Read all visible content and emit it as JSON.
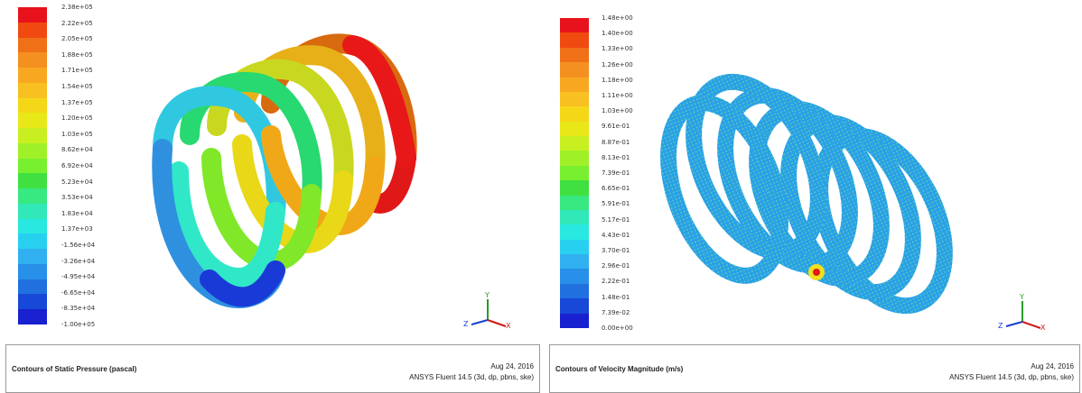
{
  "panels": [
    {
      "id": "static-pressure",
      "legend": {
        "labels": [
          "2.38e+05",
          "2.22e+05",
          "2.05e+05",
          "1.88e+05",
          "1.71e+05",
          "1.54e+05",
          "1.37e+05",
          "1.20e+05",
          "1.03e+05",
          "8.62e+04",
          "6.92e+04",
          "5.23e+04",
          "3.53e+04",
          "1.83e+04",
          "1.37e+03",
          "-1.56e+04",
          "-3.26e+04",
          "-4.95e+04",
          "-6.65e+04",
          "-8.35e+04",
          "-1.00e+05"
        ],
        "colors": [
          "#e8121c",
          "#f04a10",
          "#f07018",
          "#f49020",
          "#f8a820",
          "#f8c020",
          "#f4d818",
          "#e8e818",
          "#c8f020",
          "#a0f028",
          "#78f030",
          "#40e040",
          "#38e880",
          "#30e8b8",
          "#28e8e0",
          "#28d0f0",
          "#30b0f0",
          "#2890e8",
          "#2070e0",
          "#1848d8",
          "#1820d0"
        ]
      },
      "footer": {
        "title": "Contours of Static Pressure (pascal)",
        "date": "Aug 24, 2016",
        "product": "ANSYS Fluent 14.5 (3d, dp, pbns, ske)"
      },
      "axes": {
        "x": "X",
        "y": "Y",
        "z": "Z"
      }
    },
    {
      "id": "velocity-magnitude",
      "legend": {
        "labels": [
          "1.48e+00",
          "1.40e+00",
          "1.33e+00",
          "1.26e+00",
          "1.18e+00",
          "1.11e+00",
          "1.03e+00",
          "9.61e-01",
          "8.87e-01",
          "8.13e-01",
          "7.39e-01",
          "6.65e-01",
          "5.91e-01",
          "5.17e-01",
          "4.43e-01",
          "3.70e-01",
          "2.96e-01",
          "2.22e-01",
          "1.48e-01",
          "7.39e-02",
          "0.00e+00"
        ],
        "colors": [
          "#e8121c",
          "#f04a10",
          "#f07018",
          "#f49020",
          "#f8a820",
          "#f8c020",
          "#f4d818",
          "#e8e818",
          "#c8f020",
          "#a0f028",
          "#78f030",
          "#40e040",
          "#38e880",
          "#30e8b8",
          "#28e8e0",
          "#28d0f0",
          "#30b0f0",
          "#2890e8",
          "#2070e0",
          "#1848d8",
          "#1820d0"
        ]
      },
      "footer": {
        "title": "Contours of Velocity Magnitude (m/s)",
        "date": "Aug 24, 2016",
        "product": "ANSYS Fluent 14.5 (3d, dp, pbns, ske)"
      },
      "axes": {
        "x": "X",
        "y": "Y",
        "z": "Z"
      }
    }
  ]
}
